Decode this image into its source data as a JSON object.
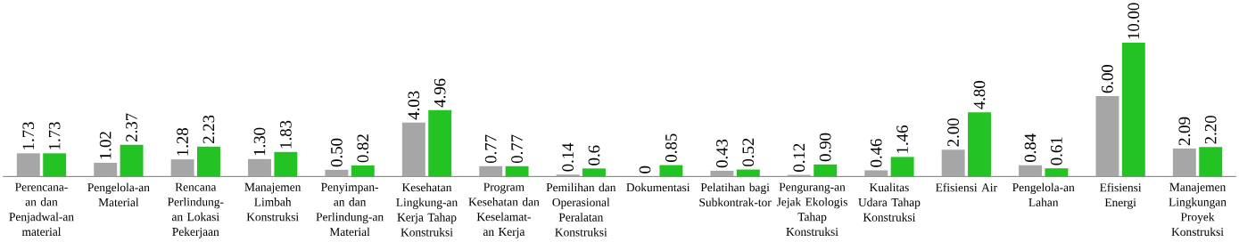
{
  "chart_data": {
    "type": "bar",
    "categories": [
      "Perencana-an dan Penjadwal-an material",
      "Pengelola-an Material",
      "Rencana Perlindung-an Lokasi Pekerjaan",
      "Manajemen Limbah Konstruksi",
      "Penyimpan-an dan Perlindung-an Material",
      "Kesehatan Lingkung-an Kerja Tahap Konstruksi",
      "Program Kesehatan dan Keselamat-an Kerja",
      "Pemilihan dan Operasional Peralatan Konstruksi",
      "Dokumentasi",
      "Pelatihan bagi Subkontrak-tor",
      "Pengurang-an Jejak Ekologis Tahap Konstruksi",
      "Kualitas Udara Tahap Konstruksi",
      "Efisiensi Air",
      "Pengelola-an Lahan",
      "Efisiensi Energi",
      "Manajemen Lingkungan Proyek Konstruksi"
    ],
    "series": [
      {
        "color": "#a6a6a6",
        "values": [
          1.73,
          1.02,
          1.28,
          1.3,
          0.5,
          4.03,
          0.77,
          0.14,
          0,
          0.43,
          0.12,
          0.46,
          2.0,
          0.84,
          6.0,
          2.09
        ],
        "value_labels": [
          "1.73",
          "1.02",
          "1.28",
          "1.30",
          "0.50",
          "4.03",
          "0.77",
          "0.14",
          "0",
          "0.43",
          "0.12",
          "0.46",
          "2.00",
          "0.84",
          "6.00",
          "2.09"
        ]
      },
      {
        "color": "#22c322",
        "values": [
          1.73,
          2.37,
          2.23,
          1.83,
          0.82,
          4.96,
          0.77,
          0.6,
          0.85,
          0.52,
          0.9,
          1.46,
          4.8,
          0.61,
          10.0,
          2.2
        ],
        "value_labels": [
          "1.73",
          "2.37",
          "2.23",
          "1.83",
          "0.82",
          "4.96",
          "0.77",
          "0.6",
          "0.85",
          "0.52",
          "0.90",
          "1.46",
          "4.80",
          "0.61",
          "10.00",
          "2.20"
        ]
      }
    ]
  }
}
